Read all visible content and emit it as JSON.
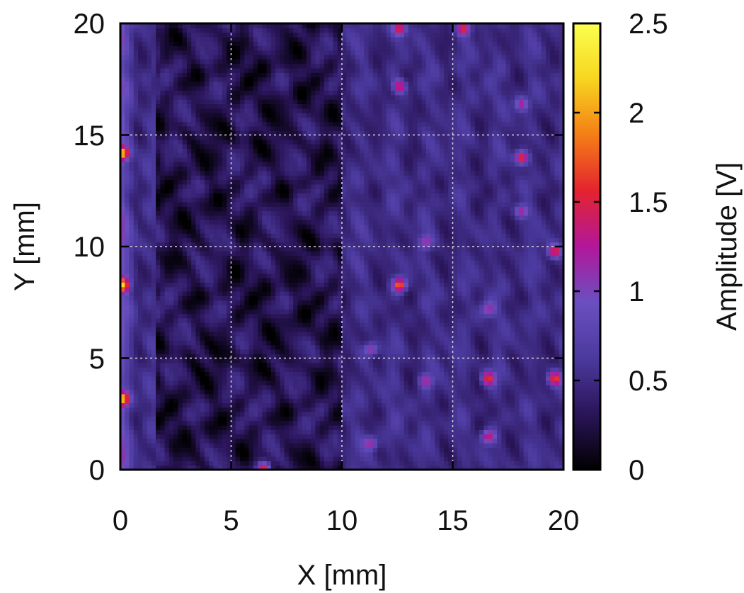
{
  "chart_data": {
    "type": "heatmap",
    "title": "",
    "xlabel": "X [mm]",
    "ylabel": "Y [mm]",
    "xlim": [
      0,
      20
    ],
    "ylim": [
      0,
      20
    ],
    "xticks": [
      "0",
      "5",
      "10",
      "15",
      "20"
    ],
    "yticks": [
      "0",
      "5",
      "10",
      "15",
      "20"
    ],
    "grid": true,
    "colorbar": {
      "label": "Amplitude [V]",
      "range": [
        0,
        2.5
      ],
      "ticks": [
        "0",
        "0.5",
        "1",
        "1.5",
        "2",
        "2.5"
      ],
      "colormap": [
        "#000000",
        "#2a1559",
        "#4b3a9e",
        "#6a4fc0",
        "#b2179a",
        "#e4232f",
        "#f47e16",
        "#f7d51f",
        "#fbff4f"
      ]
    },
    "field_description": {
      "background_amplitude_V": 0.5,
      "dark_region_x_mm": [
        1.5,
        10
      ],
      "dark_region_min_V": 0.1,
      "edge_band_x_mm": [
        0,
        0.3
      ],
      "edge_band_max_V": 1.9,
      "hotspots": [
        {
          "x": 0.1,
          "y": 14.2,
          "v": 1.9
        },
        {
          "x": 0.1,
          "y": 8.3,
          "v": 1.9
        },
        {
          "x": 0.1,
          "y": 3.2,
          "v": 1.9
        },
        {
          "x": 12.6,
          "y": 8.3,
          "v": 1.8
        },
        {
          "x": 12.6,
          "y": 17.2,
          "v": 1.5
        },
        {
          "x": 18.1,
          "y": 14.0,
          "v": 1.7
        },
        {
          "x": 16.6,
          "y": 4.1,
          "v": 1.6
        },
        {
          "x": 19.6,
          "y": 4.1,
          "v": 1.6
        },
        {
          "x": 19.6,
          "y": 9.8,
          "v": 1.5
        },
        {
          "x": 16.6,
          "y": 1.5,
          "v": 1.4
        },
        {
          "x": 6.5,
          "y": 0.1,
          "v": 1.6
        },
        {
          "x": 12.6,
          "y": 19.8,
          "v": 1.6
        },
        {
          "x": 15.5,
          "y": 19.8,
          "v": 1.6
        },
        {
          "x": 11.3,
          "y": 5.4,
          "v": 1.3
        },
        {
          "x": 13.8,
          "y": 10.2,
          "v": 1.2
        },
        {
          "x": 18.1,
          "y": 11.6,
          "v": 1.3
        },
        {
          "x": 18.1,
          "y": 16.4,
          "v": 1.2
        },
        {
          "x": 11.3,
          "y": 1.2,
          "v": 1.2
        },
        {
          "x": 13.8,
          "y": 4.0,
          "v": 1.2
        },
        {
          "x": 16.6,
          "y": 7.2,
          "v": 1.1
        }
      ]
    }
  }
}
